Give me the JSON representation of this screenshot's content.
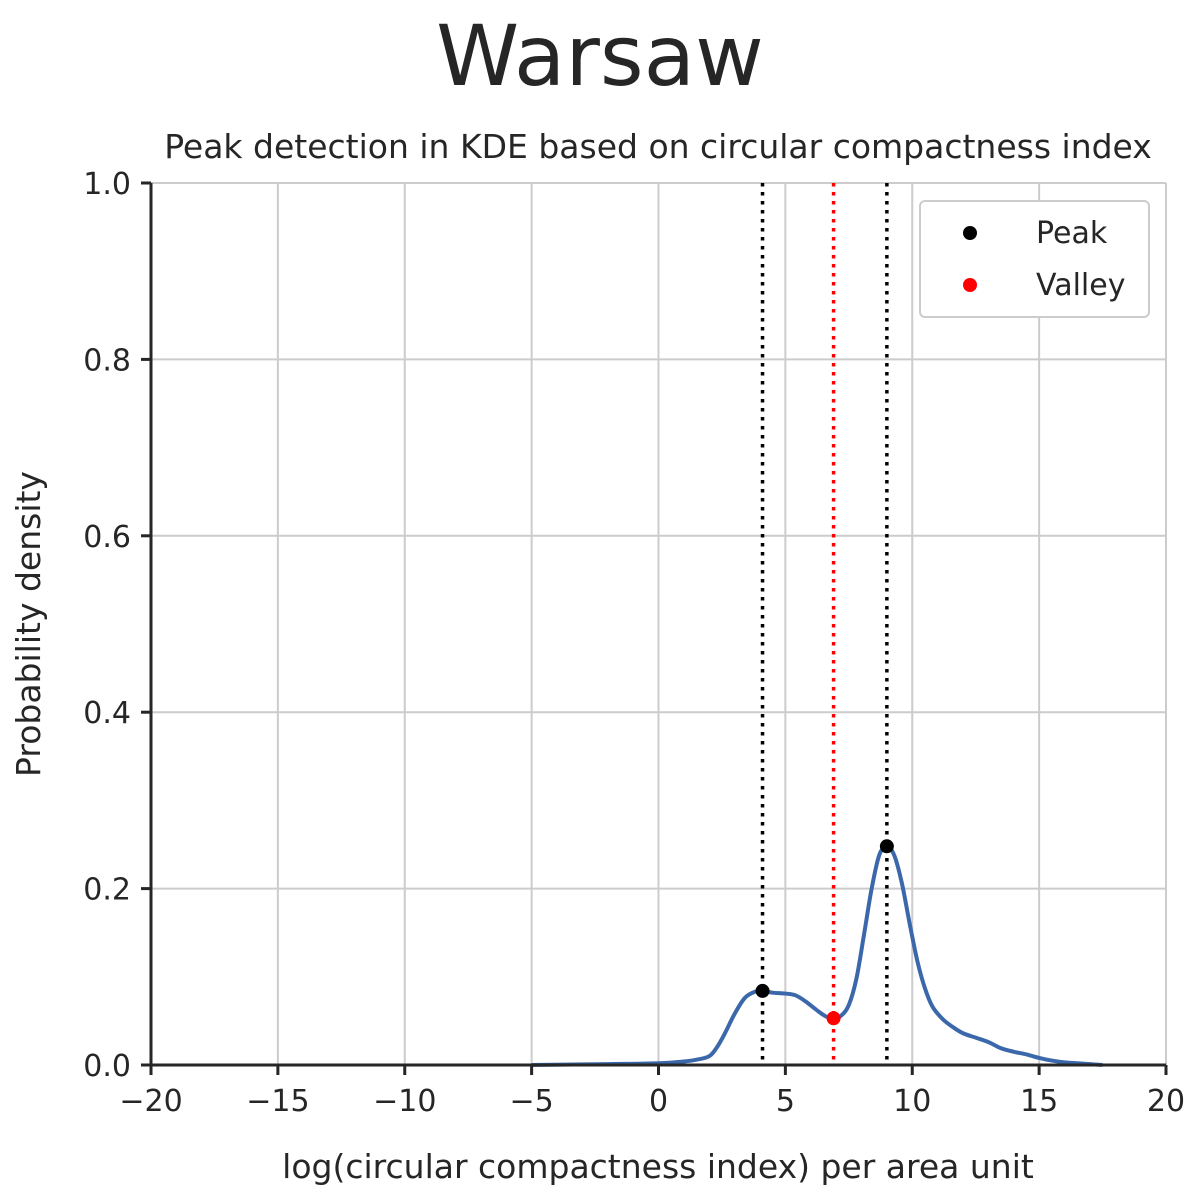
{
  "suptitle": "Warsaw",
  "chart_data": {
    "type": "line",
    "title": "Peak detection in KDE based on circular compactness index",
    "xlabel": "log(circular compactness index) per area unit",
    "ylabel": "Probability density",
    "xlim": [
      -20,
      20
    ],
    "ylim": [
      0,
      1.0
    ],
    "xticks": [
      "−20",
      "−15",
      "−10",
      "−5",
      "0",
      "5",
      "10",
      "15",
      "20"
    ],
    "xtick_values": [
      -20,
      -15,
      -10,
      -5,
      0,
      5,
      10,
      15,
      20
    ],
    "yticks": [
      "0.0",
      "0.2",
      "0.4",
      "0.6",
      "0.8",
      "1.0"
    ],
    "ytick_values": [
      0.0,
      0.2,
      0.4,
      0.6,
      0.8,
      1.0
    ],
    "grid": true,
    "legend_position": "top-right",
    "colors": {
      "kde": "#3b68ab",
      "peak": "#000000",
      "valley": "#ff0000",
      "grid": "#cccccc",
      "axis": "#262626"
    },
    "series": [
      {
        "x": [
          -5,
          -2,
          0,
          1,
          1.5,
          2,
          2.3,
          2.6,
          3.0,
          3.4,
          3.8,
          4.1,
          4.5,
          5.0,
          5.4,
          5.8,
          6.2,
          6.6,
          6.9,
          7.2,
          7.5,
          7.8,
          8.1,
          8.4,
          8.7,
          9.0,
          9.3,
          9.6,
          9.9,
          10.2,
          10.5,
          10.8,
          11.2,
          11.6,
          12.0,
          12.5,
          13.0,
          13.5,
          14.0,
          14.5,
          15.0,
          15.5,
          16.0,
          16.5,
          17.0,
          17.5
        ],
        "y": [
          0.0,
          0.001,
          0.002,
          0.004,
          0.006,
          0.01,
          0.02,
          0.035,
          0.058,
          0.076,
          0.083,
          0.084,
          0.082,
          0.081,
          0.079,
          0.072,
          0.063,
          0.055,
          0.053,
          0.056,
          0.068,
          0.098,
          0.148,
          0.2,
          0.238,
          0.248,
          0.237,
          0.205,
          0.16,
          0.118,
          0.087,
          0.066,
          0.052,
          0.043,
          0.036,
          0.031,
          0.026,
          0.019,
          0.015,
          0.012,
          0.008,
          0.005,
          0.003,
          0.002,
          0.001,
          0.0
        ]
      }
    ],
    "peaks": {
      "name": "Peak",
      "x": [
        4.1,
        9.0
      ],
      "y": [
        0.084,
        0.248
      ]
    },
    "valleys": {
      "name": "Valley",
      "x": [
        6.9
      ],
      "y": [
        0.053
      ]
    }
  }
}
